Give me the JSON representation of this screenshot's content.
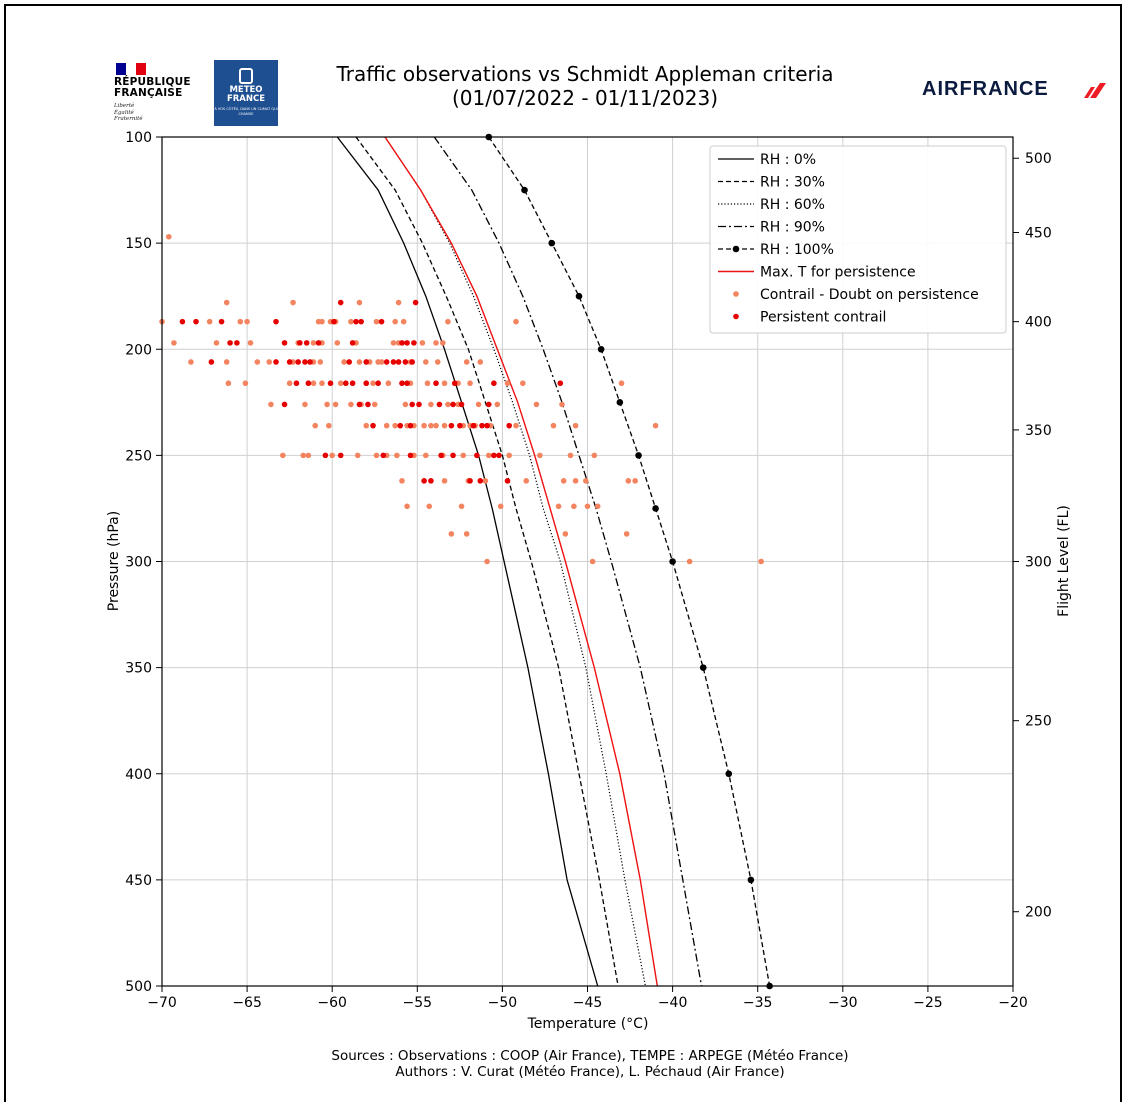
{
  "header": {
    "title_line1": "Traffic observations vs Schmidt Appleman criteria",
    "title_line2": "(01/07/2022 - 01/11/2023)",
    "rf_line1": "RÉPUBLIQUE",
    "rf_line2": "FRANÇAISE",
    "rf_motto": "Liberté Égalité Fraternité",
    "mf_line1": "METEO",
    "mf_line2": "FRANCE",
    "mf_tagline": "À VOS CÔTÉS, DANS UN CLIMAT QUI CHANGE",
    "af_text": "AIRFRANCE"
  },
  "footer": {
    "sources": "Sources : Observations : COOP (Air France), TEMPE : ARPEGE (Météo France)",
    "authors": "Authors : V. Curat (Météo France), L. Péchaud (Air France)"
  },
  "colors": {
    "max_t": "#ee1111",
    "doubt": "#f4845f",
    "persistent": "#e60000",
    "grid": "#d0d0d0",
    "mf_blue": "#1d4f91",
    "af_red": "#ee1c25"
  },
  "chart_data": {
    "type": "line",
    "xlabel": "Temperature (°C)",
    "ylabel": "Pressure (hPa)",
    "y2label": "Flight Level (FL)",
    "xlim": [
      -70,
      -20
    ],
    "ylim": [
      500,
      100
    ],
    "x_ticks": [
      -70,
      -65,
      -60,
      -55,
      -50,
      -45,
      -40,
      -35,
      -30,
      -25,
      -20
    ],
    "x_tick_labels": [
      "−70",
      "−65",
      "−60",
      "−55",
      "−50",
      "−45",
      "−40",
      "−35",
      "−30",
      "−25",
      "−20"
    ],
    "y_ticks": [
      100,
      150,
      200,
      250,
      300,
      350,
      400,
      450,
      500
    ],
    "y_tick_labels": [
      "100",
      "150",
      "200",
      "250",
      "300",
      "350",
      "400",
      "450",
      "500"
    ],
    "fl_ticks": [
      {
        "label": "500",
        "p": 110
      },
      {
        "label": "450",
        "p": 145
      },
      {
        "label": "400",
        "p": 187
      },
      {
        "label": "350",
        "p": 238
      },
      {
        "label": "300",
        "p": 300
      },
      {
        "label": "250",
        "p": 375
      },
      {
        "label": "200",
        "p": 465
      }
    ],
    "grid": true,
    "legend_position": "top-right",
    "series": [
      {
        "name": "RH : 0%",
        "style": "solid",
        "points": [
          [
            -59.7,
            100
          ],
          [
            -57.3,
            125
          ],
          [
            -55.8,
            150
          ],
          [
            -54.5,
            175
          ],
          [
            -53.4,
            200
          ],
          [
            -52.4,
            225
          ],
          [
            -51.4,
            250
          ],
          [
            -50.6,
            275
          ],
          [
            -49.9,
            300
          ],
          [
            -48.5,
            350
          ],
          [
            -47.3,
            400
          ],
          [
            -46.2,
            450
          ],
          [
            -44.4,
            500
          ]
        ]
      },
      {
        "name": "RH : 30%",
        "style": "dashed",
        "points": [
          [
            -58.6,
            100
          ],
          [
            -56.3,
            125
          ],
          [
            -54.7,
            150
          ],
          [
            -53.3,
            175
          ],
          [
            -52.0,
            200
          ],
          [
            -51.0,
            225
          ],
          [
            -50.0,
            250
          ],
          [
            -49.2,
            275
          ],
          [
            -48.3,
            300
          ],
          [
            -46.7,
            350
          ],
          [
            -45.5,
            400
          ],
          [
            -44.3,
            450
          ],
          [
            -43.2,
            500
          ]
        ]
      },
      {
        "name": "RH : 60%",
        "style": "dotted",
        "points": [
          [
            -56.9,
            100
          ],
          [
            -54.8,
            125
          ],
          [
            -53.1,
            150
          ],
          [
            -51.7,
            175
          ],
          [
            -50.5,
            200
          ],
          [
            -49.4,
            225
          ],
          [
            -48.4,
            250
          ],
          [
            -47.6,
            275
          ],
          [
            -46.6,
            300
          ],
          [
            -45.1,
            350
          ],
          [
            -43.9,
            400
          ],
          [
            -42.8,
            450
          ],
          [
            -41.6,
            500
          ]
        ]
      },
      {
        "name": "RH : 90%",
        "style": "dashdot",
        "points": [
          [
            -54.0,
            100
          ],
          [
            -51.8,
            125
          ],
          [
            -50.2,
            150
          ],
          [
            -48.8,
            175
          ],
          [
            -47.6,
            200
          ],
          [
            -46.5,
            225
          ],
          [
            -45.5,
            250
          ],
          [
            -44.5,
            275
          ],
          [
            -43.6,
            300
          ],
          [
            -41.9,
            350
          ],
          [
            -40.5,
            400
          ],
          [
            -39.4,
            450
          ],
          [
            -38.3,
            500
          ]
        ]
      },
      {
        "name": "RH : 100%",
        "style": "dashed-dots",
        "points": [
          [
            -50.8,
            100
          ],
          [
            -48.7,
            125
          ],
          [
            -47.1,
            150
          ],
          [
            -45.5,
            175
          ],
          [
            -44.2,
            200
          ],
          [
            -43.1,
            225
          ],
          [
            -42.0,
            250
          ],
          [
            -41.0,
            275
          ],
          [
            -40.0,
            300
          ],
          [
            -38.2,
            350
          ],
          [
            -36.7,
            400
          ],
          [
            -35.4,
            450
          ],
          [
            -34.3,
            500
          ]
        ]
      },
      {
        "name": "Max. T for persistence",
        "style": "solid-red",
        "points": [
          [
            -56.9,
            100
          ],
          [
            -54.8,
            125
          ],
          [
            -53.0,
            150
          ],
          [
            -51.5,
            175
          ],
          [
            -50.3,
            200
          ],
          [
            -49.1,
            225
          ],
          [
            -48.1,
            250
          ],
          [
            -47.2,
            275
          ],
          [
            -46.3,
            300
          ],
          [
            -44.6,
            350
          ],
          [
            -43.1,
            400
          ],
          [
            -41.9,
            450
          ],
          [
            -40.9,
            500
          ]
        ]
      }
    ],
    "scatter_doubt_name": "Contrail - Doubt on persistence",
    "scatter_persistent_name": "Persistent contrail",
    "scatter_doubt": [
      [
        -69.6,
        147
      ],
      [
        -66.2,
        178
      ],
      [
        -62.3,
        178
      ],
      [
        -56.1,
        178
      ],
      [
        -58.4,
        178
      ],
      [
        -70,
        187
      ],
      [
        -67.2,
        187
      ],
      [
        -65.4,
        187
      ],
      [
        -65.0,
        187
      ],
      [
        -60.8,
        187
      ],
      [
        -60.6,
        187
      ],
      [
        -60.1,
        187
      ],
      [
        -59.8,
        187
      ],
      [
        -57.4,
        187
      ],
      [
        -56.3,
        187
      ],
      [
        -55.8,
        187
      ],
      [
        -53.2,
        187
      ],
      [
        -49.2,
        187
      ],
      [
        -58.9,
        187
      ],
      [
        -69.3,
        197
      ],
      [
        -66.8,
        197
      ],
      [
        -64.8,
        197
      ],
      [
        -62.0,
        197
      ],
      [
        -61.1,
        197
      ],
      [
        -60.6,
        197
      ],
      [
        -59.7,
        197
      ],
      [
        -58.6,
        197
      ],
      [
        -56.4,
        197
      ],
      [
        -56.1,
        197
      ],
      [
        -54.7,
        197
      ],
      [
        -53.9,
        197
      ],
      [
        -53.5,
        197
      ],
      [
        -68.3,
        206
      ],
      [
        -66.2,
        206
      ],
      [
        -64.4,
        206
      ],
      [
        -63.7,
        206
      ],
      [
        -62.3,
        206
      ],
      [
        -61.1,
        206
      ],
      [
        -60.7,
        206
      ],
      [
        -59.3,
        206
      ],
      [
        -58.4,
        206
      ],
      [
        -57.8,
        206
      ],
      [
        -57.1,
        206
      ],
      [
        -55.4,
        206
      ],
      [
        -54.5,
        206
      ],
      [
        -53.8,
        206
      ],
      [
        -52.1,
        206
      ],
      [
        -51.3,
        206
      ],
      [
        -57.3,
        206
      ],
      [
        -66.1,
        216
      ],
      [
        -65.1,
        216
      ],
      [
        -62.5,
        216
      ],
      [
        -61.1,
        216
      ],
      [
        -60.6,
        216
      ],
      [
        -59.5,
        216
      ],
      [
        -58.0,
        216
      ],
      [
        -57.6,
        216
      ],
      [
        -56.7,
        216
      ],
      [
        -55.4,
        216
      ],
      [
        -54.4,
        216
      ],
      [
        -53.4,
        216
      ],
      [
        -52.6,
        216
      ],
      [
        -51.9,
        216
      ],
      [
        -49.7,
        216
      ],
      [
        -43.0,
        216
      ],
      [
        -48.8,
        216
      ],
      [
        -63.6,
        226
      ],
      [
        -61.6,
        226
      ],
      [
        -60.3,
        226
      ],
      [
        -59.8,
        226
      ],
      [
        -58.9,
        226
      ],
      [
        -58.3,
        226
      ],
      [
        -57.5,
        226
      ],
      [
        -55.7,
        226
      ],
      [
        -54.2,
        226
      ],
      [
        -53.2,
        226
      ],
      [
        -52.6,
        226
      ],
      [
        -51.4,
        226
      ],
      [
        -50.3,
        226
      ],
      [
        -46.5,
        226
      ],
      [
        -48.0,
        226
      ],
      [
        -61.0,
        236
      ],
      [
        -60.2,
        236
      ],
      [
        -58.0,
        236
      ],
      [
        -56.8,
        236
      ],
      [
        -56.3,
        236
      ],
      [
        -55.6,
        236
      ],
      [
        -55.2,
        236
      ],
      [
        -54.6,
        236
      ],
      [
        -54.2,
        236
      ],
      [
        -53.9,
        236
      ],
      [
        -53.4,
        236
      ],
      [
        -52.3,
        236
      ],
      [
        -51.9,
        236
      ],
      [
        -51.6,
        236
      ],
      [
        -50.7,
        236
      ],
      [
        -49.2,
        236
      ],
      [
        -47.0,
        236
      ],
      [
        -41.0,
        236
      ],
      [
        -45.7,
        236
      ],
      [
        -62.9,
        250
      ],
      [
        -61.4,
        250
      ],
      [
        -60.0,
        250
      ],
      [
        -58.5,
        250
      ],
      [
        -57.4,
        250
      ],
      [
        -56.8,
        250
      ],
      [
        -56.2,
        250
      ],
      [
        -55.2,
        250
      ],
      [
        -54.5,
        250
      ],
      [
        -53.5,
        250
      ],
      [
        -52.3,
        250
      ],
      [
        -50.8,
        250
      ],
      [
        -49.6,
        250
      ],
      [
        -47.8,
        250
      ],
      [
        -46.0,
        250
      ],
      [
        -44.6,
        250
      ],
      [
        -61.7,
        250
      ],
      [
        -55.9,
        262
      ],
      [
        -53.4,
        262
      ],
      [
        -52.0,
        262
      ],
      [
        -51.0,
        262
      ],
      [
        -48.6,
        262
      ],
      [
        -46.4,
        262
      ],
      [
        -45.7,
        262
      ],
      [
        -45.1,
        262
      ],
      [
        -42.6,
        262
      ],
      [
        -42.2,
        262
      ],
      [
        -55.6,
        274
      ],
      [
        -54.3,
        274
      ],
      [
        -50.1,
        274
      ],
      [
        -46.7,
        274
      ],
      [
        -45.8,
        274
      ],
      [
        -45.0,
        274
      ],
      [
        -44.4,
        274
      ],
      [
        -52.4,
        274
      ],
      [
        -53.0,
        287
      ],
      [
        -52.1,
        287
      ],
      [
        -46.3,
        287
      ],
      [
        -42.7,
        287
      ],
      [
        -50.9,
        300
      ],
      [
        -44.7,
        300
      ],
      [
        -39.0,
        300
      ],
      [
        -34.8,
        300
      ]
    ],
    "scatter_persistent": [
      [
        -59.5,
        178
      ],
      [
        -55.1,
        178
      ],
      [
        -68.8,
        187
      ],
      [
        -68.0,
        187
      ],
      [
        -66.5,
        187
      ],
      [
        -63.3,
        187
      ],
      [
        -59.9,
        187
      ],
      [
        -58.6,
        187
      ],
      [
        -58.3,
        187
      ],
      [
        -57.1,
        187
      ],
      [
        -66.0,
        197
      ],
      [
        -65.6,
        197
      ],
      [
        -62.8,
        197
      ],
      [
        -61.9,
        197
      ],
      [
        -61.5,
        197
      ],
      [
        -60.8,
        197
      ],
      [
        -58.8,
        197
      ],
      [
        -55.9,
        197
      ],
      [
        -55.2,
        197
      ],
      [
        -55.6,
        197
      ],
      [
        -67.1,
        206
      ],
      [
        -63.3,
        206
      ],
      [
        -62.5,
        206
      ],
      [
        -62.0,
        206
      ],
      [
        -61.6,
        206
      ],
      [
        -61.3,
        206
      ],
      [
        -59.0,
        206
      ],
      [
        -58.0,
        206
      ],
      [
        -56.4,
        206
      ],
      [
        -56.1,
        206
      ],
      [
        -55.7,
        206
      ],
      [
        -55.3,
        206
      ],
      [
        -56.8,
        206
      ],
      [
        -62.1,
        216
      ],
      [
        -61.4,
        216
      ],
      [
        -60.1,
        216
      ],
      [
        -59.2,
        216
      ],
      [
        -58.8,
        216
      ],
      [
        -58.0,
        216
      ],
      [
        -57.3,
        216
      ],
      [
        -55.9,
        216
      ],
      [
        -55.6,
        216
      ],
      [
        -53.9,
        216
      ],
      [
        -52.8,
        216
      ],
      [
        -50.5,
        216
      ],
      [
        -46.6,
        216
      ],
      [
        -62.8,
        226
      ],
      [
        -58.4,
        226
      ],
      [
        -57.9,
        226
      ],
      [
        -55.3,
        226
      ],
      [
        -54.9,
        226
      ],
      [
        -53.7,
        226
      ],
      [
        -52.9,
        226
      ],
      [
        -52.4,
        226
      ],
      [
        -50.8,
        226
      ],
      [
        -57.6,
        236
      ],
      [
        -55.4,
        236
      ],
      [
        -53.0,
        236
      ],
      [
        -52.5,
        236
      ],
      [
        -51.7,
        236
      ],
      [
        -51.2,
        236
      ],
      [
        -50.9,
        236
      ],
      [
        -49.6,
        236
      ],
      [
        -56.0,
        236
      ],
      [
        -60.4,
        250
      ],
      [
        -59.5,
        250
      ],
      [
        -57.0,
        250
      ],
      [
        -55.4,
        250
      ],
      [
        -53.6,
        250
      ],
      [
        -52.9,
        250
      ],
      [
        -51.5,
        250
      ],
      [
        -50.5,
        250
      ],
      [
        -50.2,
        250
      ],
      [
        -54.6,
        262
      ],
      [
        -54.2,
        262
      ],
      [
        -51.9,
        262
      ],
      [
        -51.3,
        262
      ],
      [
        -49.7,
        262
      ]
    ]
  }
}
